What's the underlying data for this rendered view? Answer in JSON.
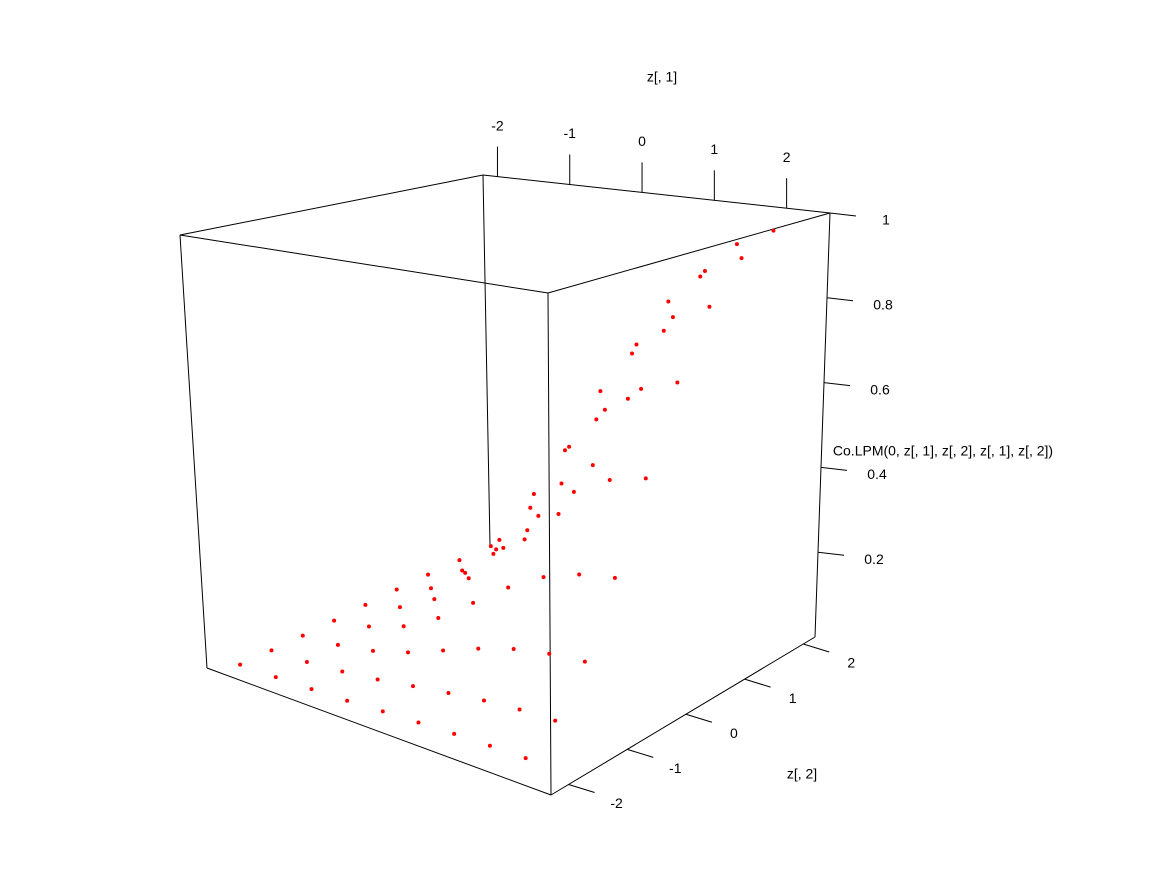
{
  "chart_data": {
    "type": "scatter3d",
    "xlabel": "z[, 1]",
    "ylabel": "z[, 2]",
    "zlabel": "Co.LPM(0, z[, 1], z[, 2], z[, 1], z[, 2])",
    "color": "#ff0000",
    "xlim": [
      -2.2,
      2.6
    ],
    "ylim": [
      -2.3,
      2.2
    ],
    "zlim": [
      0,
      1
    ],
    "xticks": [
      -2,
      -1,
      0,
      1,
      2
    ],
    "yticks": [
      -2,
      -1,
      0,
      1,
      2
    ],
    "zticks": [
      0.2,
      0.4,
      0.6,
      0.8,
      1
    ],
    "x": [
      -2,
      -2,
      -2,
      -2,
      -2,
      -2,
      -2,
      -2,
      -2,
      -1.5,
      -1.5,
      -1.5,
      -1.5,
      -1.5,
      -1.5,
      -1.5,
      -1.5,
      -1.5,
      -1,
      -1,
      -1,
      -1,
      -1,
      -1,
      -1,
      -1,
      -1,
      -0.5,
      -0.5,
      -0.5,
      -0.5,
      -0.5,
      -0.5,
      -0.5,
      -0.5,
      -0.5,
      0,
      0,
      0,
      0,
      0,
      0,
      0,
      0,
      0,
      0.5,
      0.5,
      0.5,
      0.5,
      0.5,
      0.5,
      0.5,
      0.5,
      0.5,
      1,
      1,
      1,
      1,
      1,
      1,
      1,
      1,
      1,
      1.5,
      1.5,
      1.5,
      1.5,
      1.5,
      1.5,
      1.5,
      1.5,
      1.5,
      2,
      2,
      2,
      2,
      2,
      2,
      2,
      2,
      2
    ],
    "y": [
      -2,
      -1.5,
      -1,
      -0.5,
      0,
      0.5,
      1,
      1.5,
      2,
      -2,
      -1.5,
      -1,
      -0.5,
      0,
      0.5,
      1,
      1.5,
      2,
      -2,
      -1.5,
      -1,
      -0.5,
      0,
      0.5,
      1,
      1.5,
      2,
      -2,
      -1.5,
      -1,
      -0.5,
      0,
      0.5,
      1,
      1.5,
      2,
      -2,
      -1.5,
      -1,
      -0.5,
      0,
      0.5,
      1,
      1.5,
      2,
      -2,
      -1.5,
      -1,
      -0.5,
      0,
      0.5,
      1,
      1.5,
      2,
      -2,
      -1.5,
      -1,
      -0.5,
      0,
      0.5,
      1,
      1.5,
      2,
      -2,
      -1.5,
      -1,
      -0.5,
      0,
      0.5,
      1,
      1.5,
      2,
      -2,
      -1.5,
      -1,
      -0.5,
      0,
      0.5,
      1,
      1.5,
      2
    ],
    "z": [
      0.001,
      0.002,
      0.004,
      0.007,
      0.012,
      0.016,
      0.019,
      0.021,
      0.022,
      0.002,
      0.004,
      0.011,
      0.021,
      0.034,
      0.046,
      0.056,
      0.063,
      0.065,
      0.004,
      0.011,
      0.025,
      0.049,
      0.08,
      0.11,
      0.134,
      0.148,
      0.155,
      0.007,
      0.021,
      0.049,
      0.095,
      0.155,
      0.214,
      0.26,
      0.288,
      0.302,
      0.012,
      0.034,
      0.08,
      0.155,
      0.25,
      0.346,
      0.421,
      0.467,
      0.489,
      0.016,
      0.046,
      0.11,
      0.214,
      0.346,
      0.477,
      0.581,
      0.645,
      0.675,
      0.019,
      0.056,
      0.134,
      0.26,
      0.421,
      0.581,
      0.707,
      0.785,
      0.822,
      0.021,
      0.063,
      0.148,
      0.288,
      0.467,
      0.645,
      0.785,
      0.87,
      0.912,
      0.022,
      0.065,
      0.155,
      0.302,
      0.489,
      0.675,
      0.822,
      0.912,
      0.955
    ]
  }
}
